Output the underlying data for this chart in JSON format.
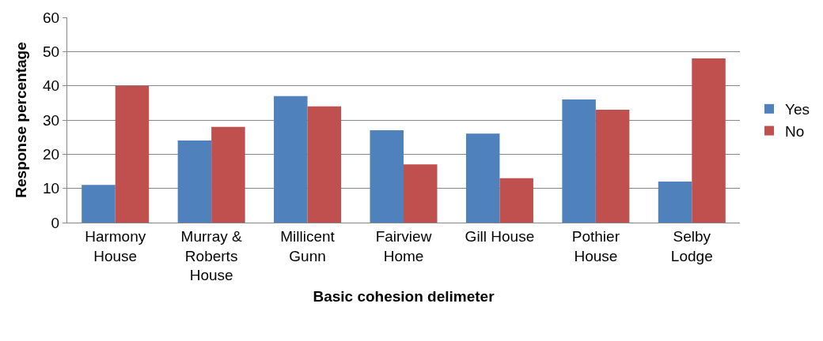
{
  "chart_data": {
    "type": "bar",
    "xlabel": "Basic cohesion delimeter",
    "ylabel": "Response percentage",
    "categories": [
      "Harmony House",
      "Murray & Roberts House",
      "Millicent Gunn",
      "Fairview Home",
      "Gill House",
      "Pothier House",
      "Selby Lodge"
    ],
    "series": [
      {
        "name": "Yes",
        "color": "#4f81bd",
        "values": [
          11,
          24,
          37,
          27,
          26,
          36,
          12
        ]
      },
      {
        "name": "No",
        "color": "#c0504d",
        "values": [
          40,
          28,
          34,
          17,
          13,
          33,
          48
        ]
      }
    ],
    "ylim": [
      0,
      60
    ],
    "yticks": [
      0,
      10,
      20,
      30,
      40,
      50,
      60
    ],
    "grid": "y",
    "legend": "right"
  }
}
